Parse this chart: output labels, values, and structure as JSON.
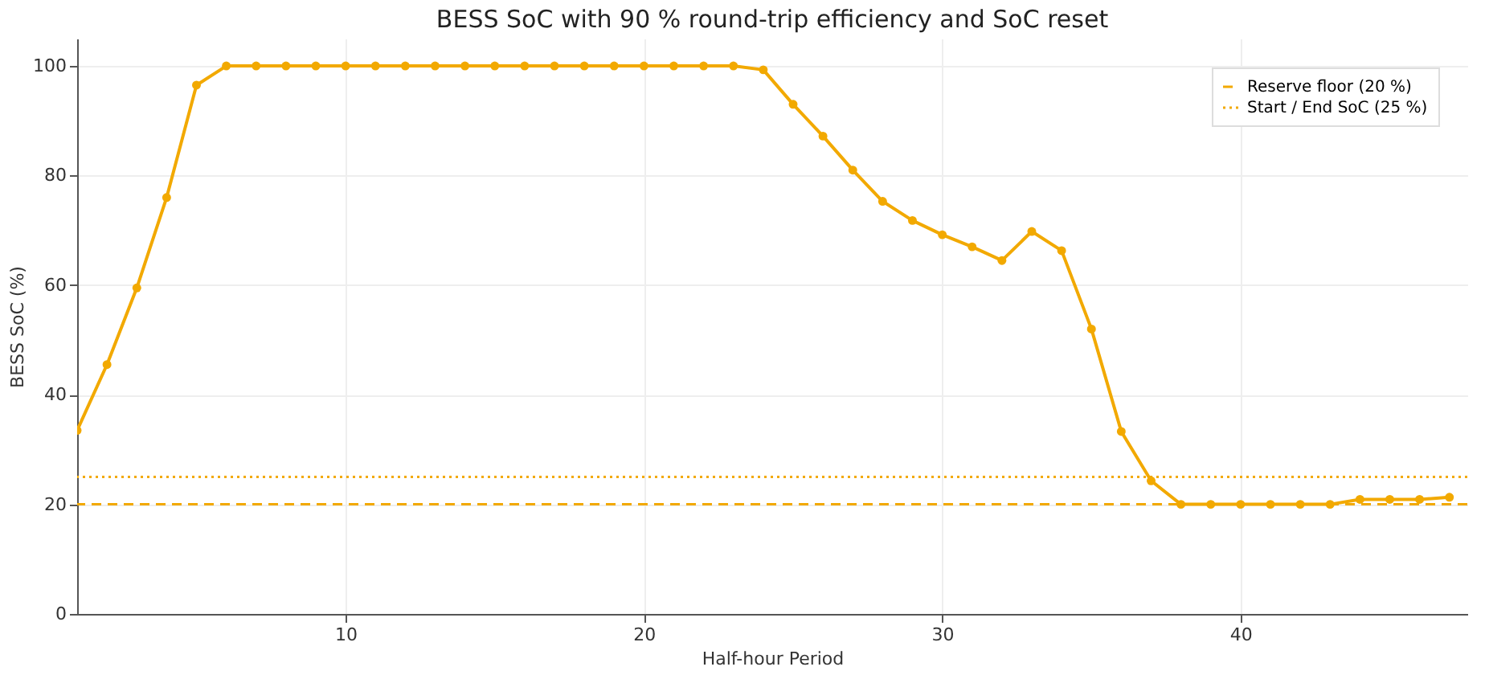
{
  "chart_data": {
    "type": "line",
    "title": "BESS SoC with 90 % round-trip efficiency and SoC reset",
    "xlabel": "Half-hour Period",
    "ylabel": "BESS SoC (%)",
    "x": [
      1,
      2,
      3,
      4,
      5,
      6,
      7,
      8,
      9,
      10,
      11,
      12,
      13,
      14,
      15,
      16,
      17,
      18,
      19,
      20,
      21,
      22,
      23,
      24,
      25,
      26,
      27,
      28,
      29,
      30,
      31,
      32,
      33,
      34,
      35,
      36,
      37,
      38,
      39,
      40,
      41,
      42,
      43,
      44,
      45,
      46,
      47
    ],
    "series": [
      {
        "color": "#f2a900",
        "values": [
          33.5,
          45.5,
          59.5,
          76,
          96.5,
          100,
          100,
          100,
          100,
          100,
          100,
          100,
          100,
          100,
          100,
          100,
          100,
          100,
          100,
          100,
          100,
          100,
          100,
          99.3,
          93,
          87.2,
          81,
          75.3,
          71.8,
          69.2,
          67,
          64.5,
          69.8,
          66.3,
          52,
          33.3,
          24.3,
          20,
          20,
          20,
          20,
          20,
          20,
          20.9,
          20.9,
          20.9,
          21.3
        ]
      }
    ],
    "xlim": [
      1,
      47.6
    ],
    "ylim": [
      0,
      105
    ],
    "xticks": [
      10,
      20,
      30,
      40
    ],
    "yticks": [
      0,
      20,
      40,
      60,
      80,
      100
    ],
    "ref_lines": [
      {
        "axis": "y",
        "value": 20,
        "label": "Reserve floor (20 %)",
        "color": "#f2a900",
        "line_style": "dashed"
      },
      {
        "axis": "y",
        "value": 25,
        "label": "Start / End SoC (25 %)",
        "color": "#f2a900",
        "line_style": "dotted"
      }
    ],
    "grid": true,
    "legend": "top right",
    "marker": "circle",
    "line_style": "solid"
  }
}
